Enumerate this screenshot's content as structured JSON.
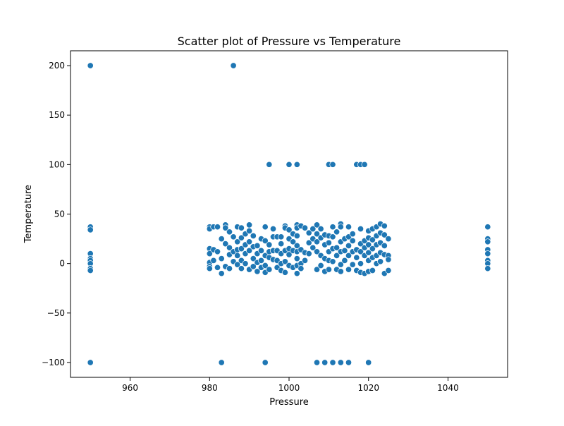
{
  "chart_data": {
    "type": "scatter",
    "title": "Scatter plot of Pressure vs Temperature",
    "xlabel": "Pressure",
    "ylabel": "Temperature",
    "xlim": [
      945,
      1055
    ],
    "ylim": [
      -115,
      215
    ],
    "xticks": [
      960,
      980,
      1000,
      1020,
      1040
    ],
    "yticks": [
      -100,
      -50,
      0,
      50,
      100,
      150,
      200
    ],
    "grid": false,
    "point_color": "#1f77b4",
    "points": [
      [
        950,
        200
      ],
      [
        950,
        37
      ],
      [
        950,
        34
      ],
      [
        950,
        10
      ],
      [
        950,
        5
      ],
      [
        950,
        3
      ],
      [
        950,
        0
      ],
      [
        950,
        -5
      ],
      [
        950,
        -7
      ],
      [
        950,
        -100
      ],
      [
        986,
        200
      ],
      [
        995,
        100
      ],
      [
        1000,
        100
      ],
      [
        1002,
        100
      ],
      [
        1010,
        100
      ],
      [
        1011,
        100
      ],
      [
        1017,
        100
      ],
      [
        1018,
        100
      ],
      [
        1019,
        100
      ],
      [
        983,
        -100
      ],
      [
        994,
        -100
      ],
      [
        1007,
        -100
      ],
      [
        1009,
        -100
      ],
      [
        1011,
        -100
      ],
      [
        1013,
        -100
      ],
      [
        1015,
        -100
      ],
      [
        1020,
        -100
      ],
      [
        1050,
        37
      ],
      [
        1050,
        25
      ],
      [
        1050,
        22
      ],
      [
        1050,
        14
      ],
      [
        1050,
        10
      ],
      [
        1050,
        3
      ],
      [
        1050,
        0
      ],
      [
        1050,
        -5
      ],
      [
        980,
        37
      ],
      [
        980,
        35
      ],
      [
        980,
        15
      ],
      [
        980,
        10
      ],
      [
        980,
        1
      ],
      [
        980,
        -3
      ],
      [
        980,
        -5
      ],
      [
        981,
        37
      ],
      [
        981,
        14
      ],
      [
        981,
        3
      ],
      [
        982,
        37
      ],
      [
        982,
        -4
      ],
      [
        982,
        12
      ],
      [
        983,
        -10
      ],
      [
        983,
        25
      ],
      [
        983,
        5
      ],
      [
        984,
        39
      ],
      [
        984,
        36
      ],
      [
        984,
        20
      ],
      [
        984,
        -3
      ],
      [
        985,
        32
      ],
      [
        985,
        16
      ],
      [
        985,
        9
      ],
      [
        985,
        -5
      ],
      [
        986,
        27
      ],
      [
        986,
        12
      ],
      [
        986,
        2
      ],
      [
        987,
        37
      ],
      [
        987,
        22
      ],
      [
        987,
        14
      ],
      [
        987,
        8
      ],
      [
        987,
        -1
      ],
      [
        988,
        36
      ],
      [
        988,
        26
      ],
      [
        988,
        15
      ],
      [
        988,
        3
      ],
      [
        988,
        -5
      ],
      [
        989,
        30
      ],
      [
        989,
        19
      ],
      [
        989,
        10
      ],
      [
        989,
        0
      ],
      [
        990,
        39
      ],
      [
        990,
        33
      ],
      [
        990,
        22
      ],
      [
        990,
        13
      ],
      [
        990,
        -6
      ],
      [
        991,
        28
      ],
      [
        991,
        17
      ],
      [
        991,
        5
      ],
      [
        991,
        -3
      ],
      [
        992,
        18
      ],
      [
        992,
        10
      ],
      [
        992,
        1
      ],
      [
        992,
        -8
      ],
      [
        993,
        25
      ],
      [
        993,
        13
      ],
      [
        993,
        3
      ],
      [
        993,
        -4
      ],
      [
        994,
        37
      ],
      [
        994,
        23
      ],
      [
        994,
        8
      ],
      [
        994,
        -2
      ],
      [
        994,
        -9
      ],
      [
        995,
        19
      ],
      [
        995,
        12
      ],
      [
        995,
        6
      ],
      [
        995,
        -6
      ],
      [
        996,
        35
      ],
      [
        996,
        27
      ],
      [
        996,
        13
      ],
      [
        996,
        4
      ],
      [
        997,
        27
      ],
      [
        997,
        13
      ],
      [
        997,
        3
      ],
      [
        997,
        -4
      ],
      [
        998,
        27
      ],
      [
        998,
        20
      ],
      [
        998,
        10
      ],
      [
        998,
        0
      ],
      [
        998,
        -7
      ],
      [
        999,
        38
      ],
      [
        999,
        36
      ],
      [
        999,
        13
      ],
      [
        999,
        2
      ],
      [
        999,
        -9
      ],
      [
        1000,
        34
      ],
      [
        1000,
        25
      ],
      [
        1000,
        15
      ],
      [
        1000,
        9
      ],
      [
        1000,
        -2
      ],
      [
        1001,
        30
      ],
      [
        1001,
        22
      ],
      [
        1001,
        13
      ],
      [
        1001,
        -4
      ],
      [
        1002,
        39
      ],
      [
        1002,
        36
      ],
      [
        1002,
        28
      ],
      [
        1002,
        18
      ],
      [
        1002,
        12
      ],
      [
        1002,
        5
      ],
      [
        1002,
        -2
      ],
      [
        1002,
        -10
      ],
      [
        1003,
        38
      ],
      [
        1003,
        14
      ],
      [
        1003,
        0
      ],
      [
        1003,
        -5
      ],
      [
        1004,
        36
      ],
      [
        1004,
        11
      ],
      [
        1004,
        3
      ],
      [
        1005,
        31
      ],
      [
        1005,
        21
      ],
      [
        1005,
        10
      ],
      [
        1006,
        35
      ],
      [
        1006,
        25
      ],
      [
        1006,
        16
      ],
      [
        1007,
        39
      ],
      [
        1007,
        30
      ],
      [
        1007,
        22
      ],
      [
        1007,
        12
      ],
      [
        1007,
        -6
      ],
      [
        1008,
        35
      ],
      [
        1008,
        26
      ],
      [
        1008,
        8
      ],
      [
        1008,
        -2
      ],
      [
        1009,
        29
      ],
      [
        1009,
        19
      ],
      [
        1009,
        5
      ],
      [
        1009,
        -8
      ],
      [
        1010,
        28
      ],
      [
        1010,
        21
      ],
      [
        1010,
        12
      ],
      [
        1010,
        3
      ],
      [
        1010,
        -6
      ],
      [
        1011,
        37
      ],
      [
        1011,
        27
      ],
      [
        1011,
        15
      ],
      [
        1011,
        2
      ],
      [
        1012,
        32
      ],
      [
        1012,
        16
      ],
      [
        1012,
        8
      ],
      [
        1012,
        -6
      ],
      [
        1013,
        40
      ],
      [
        1013,
        37
      ],
      [
        1013,
        22
      ],
      [
        1013,
        12
      ],
      [
        1013,
        -1
      ],
      [
        1013,
        -8
      ],
      [
        1014,
        25
      ],
      [
        1014,
        13
      ],
      [
        1014,
        3
      ],
      [
        1015,
        37
      ],
      [
        1015,
        27
      ],
      [
        1015,
        18
      ],
      [
        1015,
        8
      ],
      [
        1015,
        -6
      ],
      [
        1016,
        30
      ],
      [
        1016,
        23
      ],
      [
        1016,
        12
      ],
      [
        1016,
        -1
      ],
      [
        1017,
        14
      ],
      [
        1017,
        6
      ],
      [
        1017,
        -7
      ],
      [
        1018,
        35
      ],
      [
        1018,
        20
      ],
      [
        1018,
        12
      ],
      [
        1018,
        0
      ],
      [
        1018,
        -9
      ],
      [
        1019,
        23
      ],
      [
        1019,
        16
      ],
      [
        1019,
        8
      ],
      [
        1019,
        -10
      ],
      [
        1020,
        33
      ],
      [
        1020,
        26
      ],
      [
        1020,
        19
      ],
      [
        1020,
        11
      ],
      [
        1020,
        3
      ],
      [
        1020,
        -8
      ],
      [
        1021,
        35
      ],
      [
        1021,
        24
      ],
      [
        1021,
        15
      ],
      [
        1021,
        6
      ],
      [
        1021,
        -7
      ],
      [
        1022,
        37
      ],
      [
        1022,
        28
      ],
      [
        1022,
        19
      ],
      [
        1022,
        8
      ],
      [
        1022,
        0
      ],
      [
        1023,
        40
      ],
      [
        1023,
        31
      ],
      [
        1023,
        21
      ],
      [
        1023,
        11
      ],
      [
        1023,
        2
      ],
      [
        1024,
        38
      ],
      [
        1024,
        29
      ],
      [
        1024,
        18
      ],
      [
        1024,
        9
      ],
      [
        1024,
        -10
      ],
      [
        1025,
        25
      ],
      [
        1025,
        8
      ],
      [
        1025,
        4
      ],
      [
        1025,
        -7
      ]
    ]
  }
}
